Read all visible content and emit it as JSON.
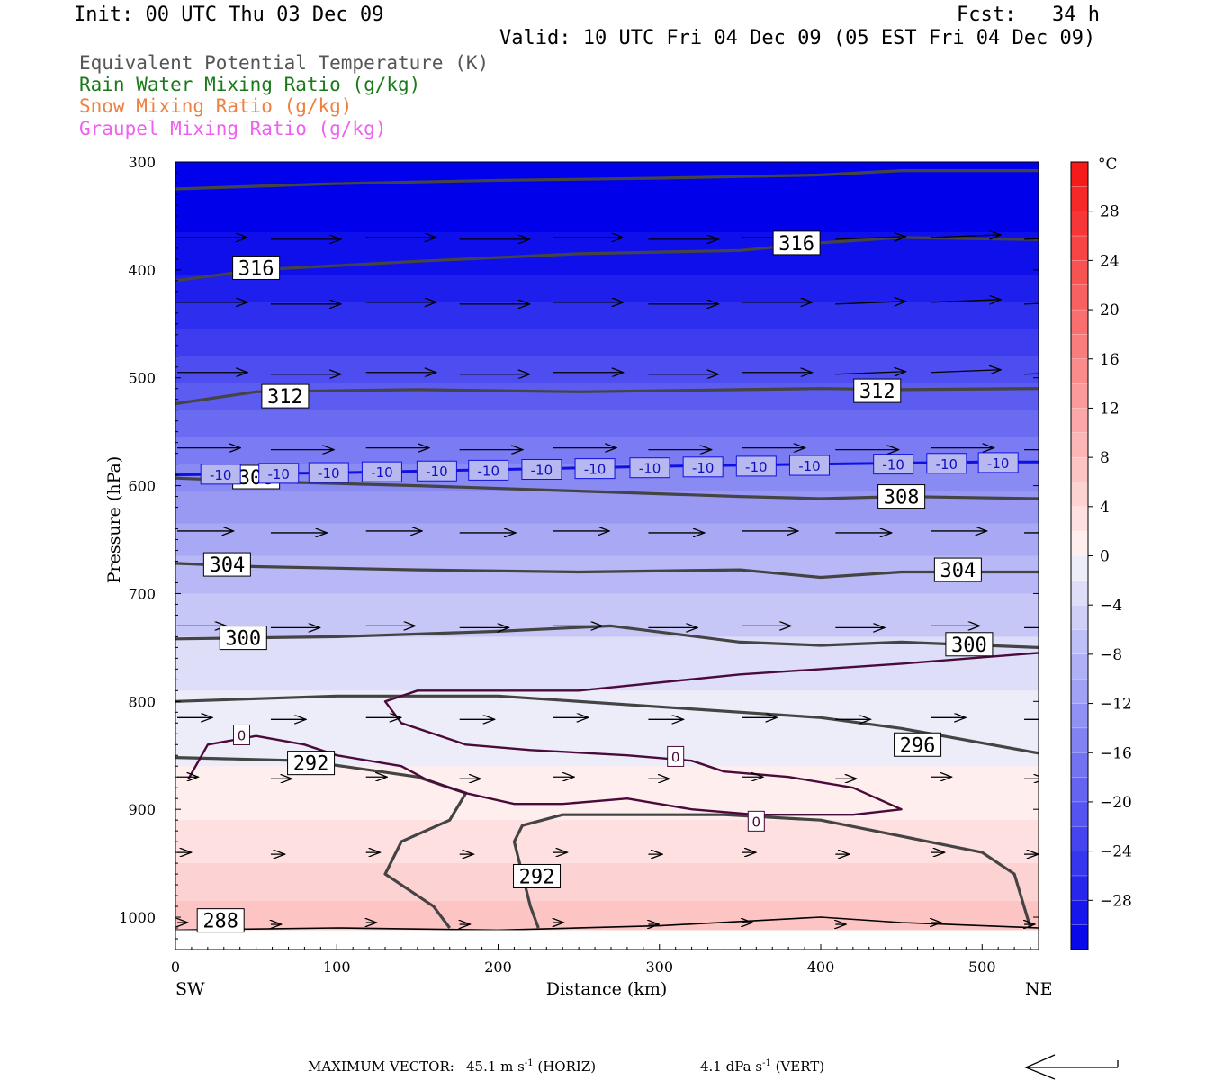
{
  "header": {
    "init": "Init: 00 UTC Thu 03 Dec 09",
    "fcst": "Fcst:   34 h",
    "valid": "Valid: 10 UTC Fri 04 Dec 09 (05 EST Fri 04 Dec 09)"
  },
  "legend": [
    {
      "label": "Equivalent Potential Temperature (K)",
      "color": "#555555"
    },
    {
      "label": "Rain Water Mixing Ratio (g/kg)",
      "color": "#1a7a1a"
    },
    {
      "label": "Snow Mixing Ratio (g/kg)",
      "color": "#f08040"
    },
    {
      "label": "Graupel Mixing Ratio (g/kg)",
      "color": "#f060f0"
    }
  ],
  "chart_data": {
    "type": "heatmap",
    "xlabel": "Distance (km)",
    "ylabel": "Pressure (hPa)",
    "xlim": [
      0,
      535
    ],
    "ylim": [
      1030,
      300
    ],
    "x_ticks": [
      0,
      100,
      200,
      300,
      400,
      500
    ],
    "y_ticks": [
      300,
      400,
      500,
      600,
      700,
      800,
      900,
      1000
    ],
    "x_ends": {
      "left": "SW",
      "right": "NE"
    },
    "colorbar": {
      "unit": "°C",
      "ticks": [
        28,
        24,
        20,
        16,
        12,
        8,
        4,
        0,
        -4,
        -8,
        -12,
        -16,
        -20,
        -24,
        -28
      ],
      "min": -32,
      "max": 32
    },
    "temperature_bands": [
      {
        "p_top": 300,
        "p_bot": 365,
        "temp": -32
      },
      {
        "p_top": 365,
        "p_bot": 405,
        "temp": -30
      },
      {
        "p_top": 405,
        "p_bot": 430,
        "temp": -28
      },
      {
        "p_top": 430,
        "p_bot": 455,
        "temp": -26
      },
      {
        "p_top": 455,
        "p_bot": 480,
        "temp": -24
      },
      {
        "p_top": 480,
        "p_bot": 505,
        "temp": -22
      },
      {
        "p_top": 505,
        "p_bot": 530,
        "temp": -20
      },
      {
        "p_top": 530,
        "p_bot": 555,
        "temp": -18
      },
      {
        "p_top": 555,
        "p_bot": 580,
        "temp": -16
      },
      {
        "p_top": 580,
        "p_bot": 605,
        "temp": -14
      },
      {
        "p_top": 605,
        "p_bot": 635,
        "temp": -12
      },
      {
        "p_top": 635,
        "p_bot": 665,
        "temp": -10
      },
      {
        "p_top": 665,
        "p_bot": 700,
        "temp": -8
      },
      {
        "p_top": 700,
        "p_bot": 740,
        "temp": -6
      },
      {
        "p_top": 740,
        "p_bot": 790,
        "temp": -3
      },
      {
        "p_top": 790,
        "p_bot": 860,
        "temp": -1
      },
      {
        "p_top": 860,
        "p_bot": 910,
        "temp": 1
      },
      {
        "p_top": 910,
        "p_bot": 950,
        "temp": 3
      },
      {
        "p_top": 950,
        "p_bot": 985,
        "temp": 5
      },
      {
        "p_top": 985,
        "p_bot": 1030,
        "temp": 7
      }
    ],
    "theta_e_contours": [
      {
        "value": 316,
        "points": [
          [
            0,
            325
          ],
          [
            100,
            320
          ],
          [
            200,
            317
          ],
          [
            300,
            315
          ],
          [
            400,
            312
          ],
          [
            450,
            308
          ],
          [
            535,
            308
          ]
        ]
      },
      {
        "value": 316,
        "points": [
          [
            0,
            410
          ],
          [
            50,
            400
          ],
          [
            150,
            392
          ],
          [
            250,
            385
          ],
          [
            350,
            382
          ],
          [
            400,
            375
          ],
          [
            450,
            370
          ],
          [
            535,
            372
          ]
        ]
      },
      {
        "value": 312,
        "points": [
          [
            0,
            524
          ],
          [
            50,
            513
          ],
          [
            150,
            511
          ],
          [
            250,
            513
          ],
          [
            350,
            511
          ],
          [
            400,
            510
          ],
          [
            450,
            511
          ],
          [
            535,
            510
          ]
        ]
      },
      {
        "value": 308,
        "points": [
          [
            0,
            593
          ],
          [
            50,
            596
          ],
          [
            150,
            600
          ],
          [
            250,
            605
          ],
          [
            350,
            610
          ],
          [
            400,
            612
          ],
          [
            450,
            610
          ],
          [
            535,
            612
          ]
        ]
      },
      {
        "value": 304,
        "points": [
          [
            0,
            672
          ],
          [
            50,
            675
          ],
          [
            150,
            678
          ],
          [
            250,
            680
          ],
          [
            350,
            678
          ],
          [
            400,
            685
          ],
          [
            450,
            680
          ],
          [
            535,
            680
          ]
        ]
      },
      {
        "value": 300,
        "points": [
          [
            0,
            742
          ],
          [
            100,
            740
          ],
          [
            200,
            735
          ],
          [
            270,
            730
          ],
          [
            350,
            745
          ],
          [
            400,
            748
          ],
          [
            450,
            745
          ],
          [
            535,
            750
          ]
        ]
      },
      {
        "value": 296,
        "points": [
          [
            0,
            800
          ],
          [
            100,
            795
          ],
          [
            200,
            795
          ],
          [
            300,
            805
          ],
          [
            400,
            815
          ],
          [
            450,
            825
          ],
          [
            535,
            848
          ]
        ]
      },
      {
        "value": 292,
        "points": [
          [
            0,
            852
          ],
          [
            80,
            855
          ],
          [
            150,
            870
          ],
          [
            180,
            885
          ],
          [
            170,
            910
          ],
          [
            140,
            930
          ],
          [
            130,
            960
          ],
          [
            160,
            990
          ],
          [
            170,
            1010
          ]
        ]
      },
      {
        "value": 292,
        "points": [
          [
            225,
            1010
          ],
          [
            220,
            990
          ],
          [
            215,
            960
          ],
          [
            210,
            930
          ],
          [
            215,
            915
          ],
          [
            240,
            905
          ],
          [
            280,
            905
          ],
          [
            340,
            905
          ],
          [
            400,
            910
          ],
          [
            450,
            925
          ],
          [
            500,
            940
          ],
          [
            520,
            960
          ],
          [
            530,
            1010
          ]
        ]
      }
    ],
    "zero_isotherm": [
      [
        [
          8,
          872
        ],
        [
          20,
          840
        ],
        [
          50,
          832
        ],
        [
          80,
          840
        ],
        [
          100,
          850
        ],
        [
          140,
          860
        ],
        [
          155,
          872
        ],
        [
          170,
          880
        ],
        [
          180,
          885
        ],
        [
          210,
          895
        ],
        [
          240,
          895
        ],
        [
          280,
          890
        ],
        [
          320,
          900
        ],
        [
          360,
          905
        ],
        [
          420,
          905
        ],
        [
          450,
          900
        ],
        [
          420,
          880
        ],
        [
          380,
          870
        ],
        [
          340,
          865
        ],
        [
          320,
          855
        ],
        [
          280,
          850
        ],
        [
          220,
          845
        ],
        [
          180,
          840
        ],
        [
          140,
          820
        ],
        [
          130,
          800
        ],
        [
          150,
          790
        ],
        [
          250,
          790
        ],
        [
          350,
          775
        ],
        [
          400,
          770
        ],
        [
          450,
          765
        ],
        [
          535,
          755
        ]
      ]
    ],
    "minus10_isotherm": {
      "value": -10,
      "points": [
        [
          0,
          590
        ],
        [
          100,
          588
        ],
        [
          200,
          585
        ],
        [
          300,
          582
        ],
        [
          400,
          580
        ],
        [
          500,
          578
        ],
        [
          535,
          578
        ]
      ]
    },
    "contour_labels": [
      {
        "text": "316",
        "x": 50,
        "p": 398
      },
      {
        "text": "316",
        "x": 385,
        "p": 375
      },
      {
        "text": "312",
        "x": 68,
        "p": 517
      },
      {
        "text": "312",
        "x": 435,
        "p": 512
      },
      {
        "text": "308",
        "x": 50,
        "p": 592
      },
      {
        "text": "308",
        "x": 450,
        "p": 610
      },
      {
        "text": "304",
        "x": 32,
        "p": 673
      },
      {
        "text": "304",
        "x": 485,
        "p": 678
      },
      {
        "text": "300",
        "x": 42,
        "p": 741
      },
      {
        "text": "300",
        "x": 492,
        "p": 747
      },
      {
        "text": "296",
        "x": 460,
        "p": 840
      },
      {
        "text": "292",
        "x": 84,
        "p": 857
      },
      {
        "text": "292",
        "x": 224,
        "p": 962
      },
      {
        "text": "288",
        "x": 28,
        "p": 1003
      }
    ],
    "isotherm_labels": [
      "-10",
      "-10",
      "-10",
      "-10",
      "-10",
      "-10",
      "-10",
      "-10",
      "-10",
      "-10",
      "-10",
      "-10",
      "-10",
      "-10",
      "-10"
    ],
    "zero_labels": [
      "0",
      "0",
      "0"
    ],
    "wind_levels": [
      {
        "p": 370,
        "u": 1.0
      },
      {
        "p": 430,
        "u": 1.0
      },
      {
        "p": 495,
        "u": 1.0
      },
      {
        "p": 565,
        "u": 0.9
      },
      {
        "p": 642,
        "u": 0.8
      },
      {
        "p": 730,
        "u": 0.7
      },
      {
        "p": 815,
        "u": 0.5
      },
      {
        "p": 870,
        "u": 0.3
      },
      {
        "p": 940,
        "u": 0.2
      },
      {
        "p": 1005,
        "u": 0.15
      }
    ]
  },
  "footer": {
    "max_vector_label": "MAXIMUM VECTOR:",
    "horiz_value": "45.1 m s",
    "horiz_unit": " (HORIZ)",
    "vert_value": "4.1 dPa s",
    "vert_unit": " (VERT)",
    "exponent": "-1"
  }
}
